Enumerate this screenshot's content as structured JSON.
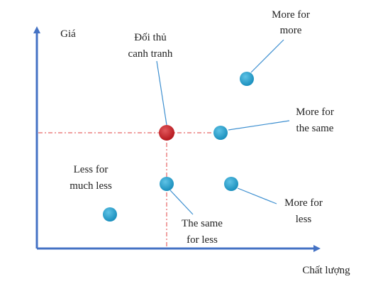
{
  "axes": {
    "y_label": "Giá",
    "x_label": "Chất lượng"
  },
  "nodes": [
    {
      "label": [
        "Đối thủ",
        "canh tranh"
      ]
    },
    {
      "label": [
        "More for",
        "more"
      ]
    },
    {
      "label": [
        "More for",
        "the same"
      ]
    },
    {
      "label": [
        "Less for",
        "much less"
      ]
    },
    {
      "label": [
        "The same",
        "for less"
      ]
    },
    {
      "label": [
        "More for",
        "less"
      ]
    }
  ]
}
